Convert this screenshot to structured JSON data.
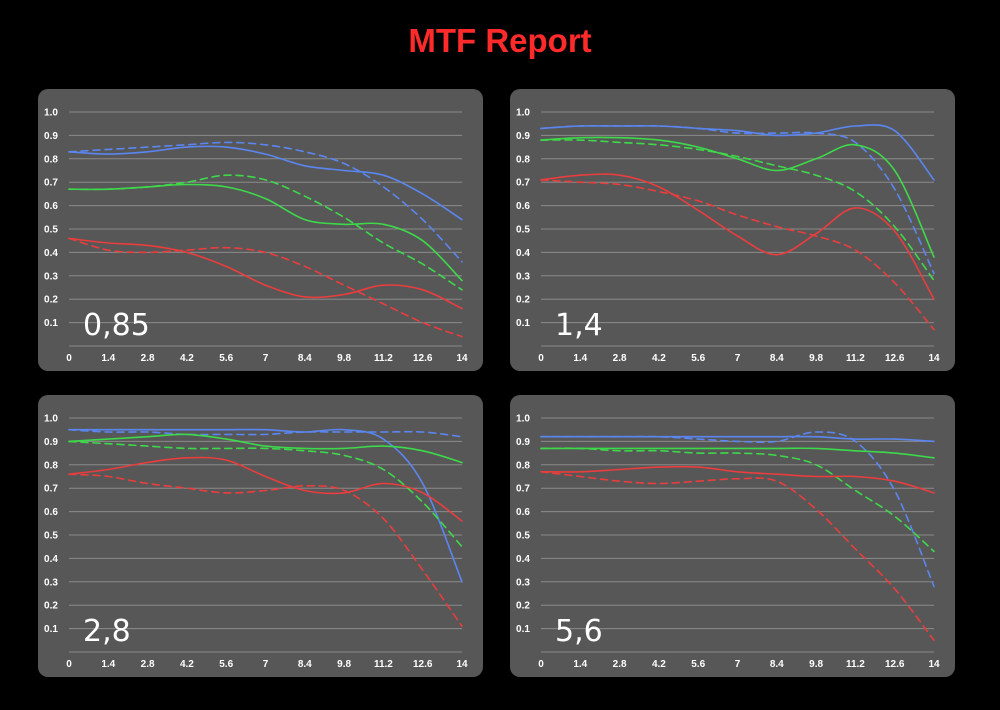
{
  "title": "MTF Report",
  "colors": {
    "background": "#000000",
    "panel": "#575757",
    "title": "#ff2a2a",
    "grid": "#8a8a8a",
    "blue": "#5b86f0",
    "green": "#3ed94a",
    "red": "#ea3d3d"
  },
  "chart_data": [
    {
      "type": "line",
      "label": "0,85",
      "x_ticks": [
        "0",
        "1.4",
        "2.8",
        "4.2",
        "5.6",
        "7",
        "8.4",
        "9.8",
        "11.2",
        "12.6",
        "14"
      ],
      "y_ticks": [
        "0.1",
        "0.2",
        "0.3",
        "0.4",
        "0.5",
        "0.6",
        "0.7",
        "0.8",
        "0.9",
        "1.0"
      ],
      "xlim": [
        0,
        14
      ],
      "ylim": [
        0,
        1.0
      ],
      "grid": true,
      "series": [
        {
          "color": "blue",
          "style": "solid",
          "x": [
            0,
            1.4,
            2.8,
            4.2,
            5.6,
            7,
            8.4,
            9.8,
            11.2,
            12.6,
            14
          ],
          "y": [
            0.83,
            0.82,
            0.83,
            0.85,
            0.85,
            0.82,
            0.77,
            0.75,
            0.73,
            0.65,
            0.54
          ]
        },
        {
          "color": "blue",
          "style": "dashed",
          "x": [
            0,
            1.4,
            2.8,
            4.2,
            5.6,
            7,
            8.4,
            9.8,
            11.2,
            12.6,
            14
          ],
          "y": [
            0.83,
            0.84,
            0.85,
            0.86,
            0.87,
            0.86,
            0.83,
            0.78,
            0.68,
            0.54,
            0.36
          ]
        },
        {
          "color": "green",
          "style": "solid",
          "x": [
            0,
            1.4,
            2.8,
            4.2,
            5.6,
            7,
            8.4,
            9.8,
            11.2,
            12.6,
            14
          ],
          "y": [
            0.67,
            0.67,
            0.68,
            0.69,
            0.68,
            0.63,
            0.54,
            0.52,
            0.52,
            0.45,
            0.28
          ]
        },
        {
          "color": "green",
          "style": "dashed",
          "x": [
            0,
            1.4,
            2.8,
            4.2,
            5.6,
            7,
            8.4,
            9.8,
            11.2,
            12.6,
            14
          ],
          "y": [
            0.67,
            0.67,
            0.68,
            0.7,
            0.73,
            0.71,
            0.64,
            0.55,
            0.44,
            0.35,
            0.24
          ]
        },
        {
          "color": "red",
          "style": "solid",
          "x": [
            0,
            1.4,
            2.8,
            4.2,
            5.6,
            7,
            8.4,
            9.8,
            11.2,
            12.6,
            14
          ],
          "y": [
            0.46,
            0.44,
            0.43,
            0.4,
            0.34,
            0.26,
            0.21,
            0.22,
            0.26,
            0.24,
            0.16
          ]
        },
        {
          "color": "red",
          "style": "dashed",
          "x": [
            0,
            1.4,
            2.8,
            4.2,
            5.6,
            7,
            8.4,
            9.8,
            11.2,
            12.6,
            14
          ],
          "y": [
            0.46,
            0.41,
            0.4,
            0.41,
            0.42,
            0.4,
            0.34,
            0.26,
            0.18,
            0.1,
            0.04
          ]
        }
      ]
    },
    {
      "type": "line",
      "label": "1,4",
      "x_ticks": [
        "0",
        "1.4",
        "2.8",
        "4.2",
        "5.6",
        "7",
        "8.4",
        "9.8",
        "11.2",
        "12.6",
        "14"
      ],
      "y_ticks": [
        "0.1",
        "0.2",
        "0.3",
        "0.4",
        "0.5",
        "0.6",
        "0.7",
        "0.8",
        "0.9",
        "1.0"
      ],
      "xlim": [
        0,
        14
      ],
      "ylim": [
        0,
        1.0
      ],
      "grid": true,
      "series": [
        {
          "color": "blue",
          "style": "solid",
          "x": [
            0,
            1.4,
            2.8,
            4.2,
            5.6,
            7,
            8.4,
            9.8,
            11.2,
            12.6,
            14
          ],
          "y": [
            0.93,
            0.94,
            0.94,
            0.94,
            0.93,
            0.92,
            0.9,
            0.91,
            0.94,
            0.92,
            0.71
          ]
        },
        {
          "color": "blue",
          "style": "dashed",
          "x": [
            0,
            1.4,
            2.8,
            4.2,
            5.6,
            7,
            8.4,
            9.8,
            11.2,
            12.6,
            14
          ],
          "y": [
            0.93,
            0.94,
            0.94,
            0.94,
            0.93,
            0.91,
            0.91,
            0.91,
            0.87,
            0.67,
            0.31
          ]
        },
        {
          "color": "green",
          "style": "solid",
          "x": [
            0,
            1.4,
            2.8,
            4.2,
            5.6,
            7,
            8.4,
            9.8,
            11.2,
            12.6,
            14
          ],
          "y": [
            0.88,
            0.89,
            0.89,
            0.88,
            0.85,
            0.8,
            0.75,
            0.8,
            0.86,
            0.75,
            0.38
          ]
        },
        {
          "color": "green",
          "style": "dashed",
          "x": [
            0,
            1.4,
            2.8,
            4.2,
            5.6,
            7,
            8.4,
            9.8,
            11.2,
            12.6,
            14
          ],
          "y": [
            0.88,
            0.88,
            0.87,
            0.86,
            0.84,
            0.81,
            0.77,
            0.73,
            0.66,
            0.51,
            0.28
          ]
        },
        {
          "color": "red",
          "style": "solid",
          "x": [
            0,
            1.4,
            2.8,
            4.2,
            5.6,
            7,
            8.4,
            9.8,
            11.2,
            12.6,
            14
          ],
          "y": [
            0.71,
            0.73,
            0.73,
            0.68,
            0.58,
            0.47,
            0.39,
            0.48,
            0.59,
            0.49,
            0.2
          ]
        },
        {
          "color": "red",
          "style": "dashed",
          "x": [
            0,
            1.4,
            2.8,
            4.2,
            5.6,
            7,
            8.4,
            9.8,
            11.2,
            12.6,
            14
          ],
          "y": [
            0.71,
            0.7,
            0.69,
            0.66,
            0.62,
            0.56,
            0.51,
            0.47,
            0.41,
            0.27,
            0.07
          ]
        }
      ]
    },
    {
      "type": "line",
      "label": "2,8",
      "x_ticks": [
        "0",
        "1.4",
        "2.8",
        "4.2",
        "5.6",
        "7",
        "8.4",
        "9.8",
        "11.2",
        "12.6",
        "14"
      ],
      "y_ticks": [
        "0.1",
        "0.2",
        "0.3",
        "0.4",
        "0.5",
        "0.6",
        "0.7",
        "0.8",
        "0.9",
        "1.0"
      ],
      "xlim": [
        0,
        14
      ],
      "ylim": [
        0,
        1.0
      ],
      "grid": true,
      "series": [
        {
          "color": "blue",
          "style": "solid",
          "x": [
            0,
            1.4,
            2.8,
            4.2,
            5.6,
            7,
            8.4,
            9.8,
            11.2,
            12.6,
            14
          ],
          "y": [
            0.95,
            0.95,
            0.95,
            0.95,
            0.95,
            0.95,
            0.94,
            0.95,
            0.91,
            0.72,
            0.3
          ]
        },
        {
          "color": "blue",
          "style": "dashed",
          "x": [
            0,
            1.4,
            2.8,
            4.2,
            5.6,
            7,
            8.4,
            9.8,
            11.2,
            12.6,
            14
          ],
          "y": [
            0.95,
            0.94,
            0.94,
            0.93,
            0.93,
            0.93,
            0.94,
            0.94,
            0.94,
            0.94,
            0.92
          ]
        },
        {
          "color": "green",
          "style": "solid",
          "x": [
            0,
            1.4,
            2.8,
            4.2,
            5.6,
            7,
            8.4,
            9.8,
            11.2,
            12.6,
            14
          ],
          "y": [
            0.9,
            0.91,
            0.92,
            0.93,
            0.91,
            0.88,
            0.87,
            0.87,
            0.88,
            0.86,
            0.81
          ]
        },
        {
          "color": "green",
          "style": "dashed",
          "x": [
            0,
            1.4,
            2.8,
            4.2,
            5.6,
            7,
            8.4,
            9.8,
            11.2,
            12.6,
            14
          ],
          "y": [
            0.9,
            0.89,
            0.88,
            0.87,
            0.87,
            0.87,
            0.86,
            0.84,
            0.78,
            0.64,
            0.45
          ]
        },
        {
          "color": "red",
          "style": "solid",
          "x": [
            0,
            1.4,
            2.8,
            4.2,
            5.6,
            7,
            8.4,
            9.8,
            11.2,
            12.6,
            14
          ],
          "y": [
            0.76,
            0.78,
            0.81,
            0.83,
            0.82,
            0.75,
            0.69,
            0.68,
            0.72,
            0.68,
            0.56
          ]
        },
        {
          "color": "red",
          "style": "dashed",
          "x": [
            0,
            1.4,
            2.8,
            4.2,
            5.6,
            7,
            8.4,
            9.8,
            11.2,
            12.6,
            14
          ],
          "y": [
            0.76,
            0.75,
            0.72,
            0.7,
            0.68,
            0.69,
            0.71,
            0.69,
            0.57,
            0.35,
            0.11
          ]
        }
      ]
    },
    {
      "type": "line",
      "label": "5,6",
      "x_ticks": [
        "0",
        "1.4",
        "2.8",
        "4.2",
        "5.6",
        "7",
        "8.4",
        "9.8",
        "11.2",
        "12.6",
        "14"
      ],
      "y_ticks": [
        "0.1",
        "0.2",
        "0.3",
        "0.4",
        "0.5",
        "0.6",
        "0.7",
        "0.8",
        "0.9",
        "1.0"
      ],
      "xlim": [
        0,
        14
      ],
      "ylim": [
        0,
        1.0
      ],
      "grid": true,
      "series": [
        {
          "color": "blue",
          "style": "solid",
          "x": [
            0,
            1.4,
            2.8,
            4.2,
            5.6,
            7,
            8.4,
            9.8,
            11.2,
            12.6,
            14
          ],
          "y": [
            0.92,
            0.92,
            0.92,
            0.92,
            0.92,
            0.92,
            0.92,
            0.92,
            0.91,
            0.91,
            0.9
          ]
        },
        {
          "color": "blue",
          "style": "dashed",
          "x": [
            0,
            1.4,
            2.8,
            4.2,
            5.6,
            7,
            8.4,
            9.8,
            11.2,
            12.6,
            14
          ],
          "y": [
            0.92,
            0.92,
            0.92,
            0.92,
            0.91,
            0.9,
            0.9,
            0.94,
            0.9,
            0.69,
            0.28
          ]
        },
        {
          "color": "green",
          "style": "solid",
          "x": [
            0,
            1.4,
            2.8,
            4.2,
            5.6,
            7,
            8.4,
            9.8,
            11.2,
            12.6,
            14
          ],
          "y": [
            0.87,
            0.87,
            0.87,
            0.87,
            0.87,
            0.87,
            0.87,
            0.87,
            0.86,
            0.85,
            0.83
          ]
        },
        {
          "color": "green",
          "style": "dashed",
          "x": [
            0,
            1.4,
            2.8,
            4.2,
            5.6,
            7,
            8.4,
            9.8,
            11.2,
            12.6,
            14
          ],
          "y": [
            0.87,
            0.87,
            0.86,
            0.86,
            0.85,
            0.85,
            0.84,
            0.8,
            0.69,
            0.58,
            0.43
          ]
        },
        {
          "color": "red",
          "style": "solid",
          "x": [
            0,
            1.4,
            2.8,
            4.2,
            5.6,
            7,
            8.4,
            9.8,
            11.2,
            12.6,
            14
          ],
          "y": [
            0.77,
            0.77,
            0.78,
            0.79,
            0.79,
            0.77,
            0.76,
            0.75,
            0.75,
            0.73,
            0.68
          ]
        },
        {
          "color": "red",
          "style": "dashed",
          "x": [
            0,
            1.4,
            2.8,
            4.2,
            5.6,
            7,
            8.4,
            9.8,
            11.2,
            12.6,
            14
          ],
          "y": [
            0.77,
            0.75,
            0.73,
            0.72,
            0.73,
            0.74,
            0.73,
            0.61,
            0.44,
            0.27,
            0.05
          ]
        }
      ]
    }
  ]
}
